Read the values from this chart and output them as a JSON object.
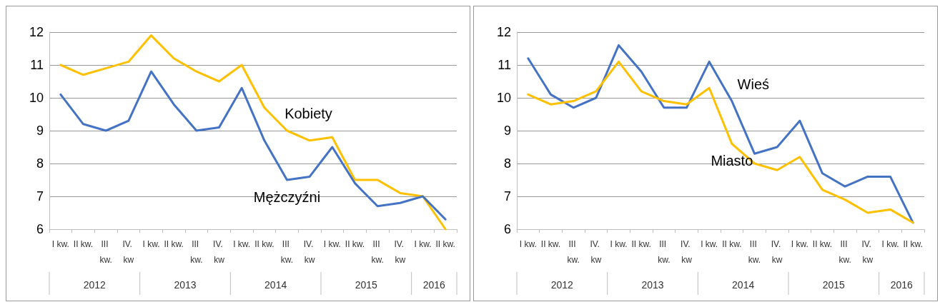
{
  "chart_data": [
    {
      "type": "line",
      "categories": [
        "I kw.",
        "II kw.",
        "III kw.",
        "IV. kw",
        "I kw.",
        "II kw.",
        "III kw.",
        "IV. kw",
        "I kw.",
        "II kw.",
        "III kw.",
        "IV. kw",
        "I kw.",
        "II kw.",
        "III kw.",
        "IV. kw",
        "I kw.",
        "II kw."
      ],
      "series": [
        {
          "name": "Kobiety",
          "color": "#ffc000",
          "values": [
            11.0,
            10.7,
            10.9,
            11.1,
            11.9,
            11.2,
            10.8,
            10.5,
            11.0,
            9.7,
            9.0,
            8.7,
            8.8,
            7.5,
            7.5,
            7.1,
            7.0,
            6.0
          ]
        },
        {
          "name": "Mężczyźni",
          "color": "#4472c4",
          "values": [
            10.1,
            9.2,
            9.0,
            9.3,
            10.8,
            9.8,
            9.0,
            9.1,
            10.3,
            8.7,
            7.5,
            7.6,
            8.5,
            7.4,
            6.7,
            6.8,
            7.0,
            6.3
          ]
        }
      ],
      "annotations": [
        "2012",
        "2013",
        "2014",
        "2015",
        "2016"
      ],
      "ylim": [
        6,
        12
      ],
      "yticks": [
        6,
        7,
        8,
        9,
        10,
        11,
        12
      ],
      "grid": "y",
      "legend": false,
      "marker": "none"
    },
    {
      "type": "line",
      "categories": [
        "I kw.",
        "II kw.",
        "III kw.",
        "IV. kw",
        "I kw.",
        "II kw.",
        "III kw.",
        "IV. kw",
        "I kw.",
        "II kw.",
        "III kw.",
        "IV. kw",
        "I kw.",
        "II kw.",
        "III kw.",
        "IV. kw",
        "I kw.",
        "II kw."
      ],
      "series": [
        {
          "name": "Wieś",
          "color": "#4472c4",
          "values": [
            11.2,
            10.1,
            9.7,
            10.0,
            11.6,
            10.8,
            9.7,
            9.7,
            11.1,
            9.9,
            8.3,
            8.5,
            9.3,
            7.7,
            7.3,
            7.6,
            7.6,
            6.2
          ]
        },
        {
          "name": "Miasto",
          "color": "#ffc000",
          "values": [
            10.1,
            9.8,
            9.9,
            10.2,
            11.1,
            10.2,
            9.9,
            9.8,
            10.3,
            8.6,
            8.0,
            7.8,
            8.2,
            7.2,
            6.9,
            6.5,
            6.6,
            6.2
          ]
        }
      ],
      "annotations": [
        "2012",
        "2013",
        "2014",
        "2015",
        "2016"
      ],
      "ylim": [
        6,
        12
      ],
      "yticks": [
        6,
        7,
        8,
        9,
        10,
        11,
        12
      ],
      "grid": "y",
      "legend": false,
      "marker": "none"
    }
  ]
}
